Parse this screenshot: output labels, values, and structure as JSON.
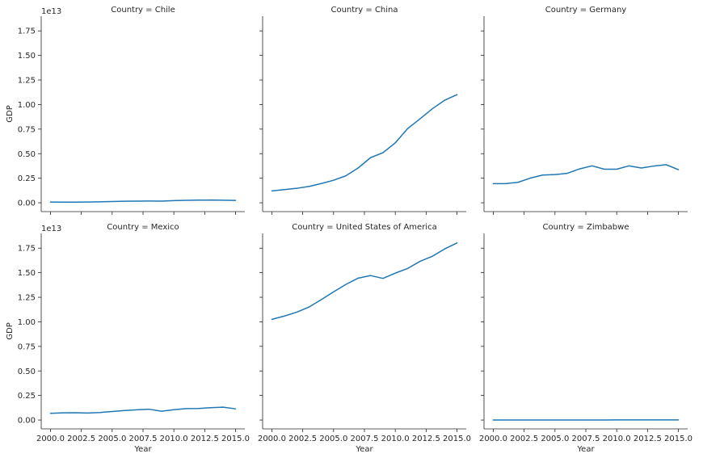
{
  "chart_data": {
    "type": "line",
    "layout": "facet-grid",
    "facet_var": "Country",
    "title_template": "Country = {}",
    "xlabel": "Year",
    "ylabel": "GDP",
    "offset_label": "1e13",
    "xlim": [
      1999.25,
      2015.75
    ],
    "ylim": [
      -0.09,
      1.9
    ],
    "x_ticks": [
      2000.0,
      2002.5,
      2005.0,
      2007.5,
      2010.0,
      2012.5,
      2015.0
    ],
    "x_tick_labels": [
      "2000.0",
      "2002.5",
      "2005.0",
      "2007.5",
      "2010.0",
      "2012.5",
      "2015.0"
    ],
    "y_ticks": [
      0.0,
      0.25,
      0.5,
      0.75,
      1.0,
      1.25,
      1.5,
      1.75
    ],
    "y_tick_labels": [
      "0.00",
      "0.25",
      "0.50",
      "0.75",
      "1.00",
      "1.25",
      "1.50",
      "1.75"
    ],
    "line_color": "#1f77b4",
    "x": [
      2000,
      2001,
      2002,
      2003,
      2004,
      2005,
      2006,
      2007,
      2008,
      2009,
      2010,
      2011,
      2012,
      2013,
      2014,
      2015
    ],
    "series": [
      {
        "name": "Chile",
        "values": [
          0.0078,
          0.0069,
          0.0068,
          0.0076,
          0.0099,
          0.0123,
          0.0155,
          0.0173,
          0.0179,
          0.0172,
          0.0218,
          0.0252,
          0.0267,
          0.0278,
          0.026,
          0.0243
        ]
      },
      {
        "name": "China",
        "values": [
          0.121,
          0.134,
          0.147,
          0.166,
          0.196,
          0.229,
          0.275,
          0.355,
          0.46,
          0.51,
          0.61,
          0.755,
          0.854,
          0.957,
          1.044,
          1.101
        ]
      },
      {
        "name": "Germany",
        "values": [
          0.195,
          0.195,
          0.208,
          0.251,
          0.282,
          0.287,
          0.3,
          0.345,
          0.376,
          0.342,
          0.342,
          0.376,
          0.354,
          0.374,
          0.388,
          0.337
        ]
      },
      {
        "name": "Mexico",
        "values": [
          0.068,
          0.073,
          0.074,
          0.071,
          0.077,
          0.087,
          0.097,
          0.104,
          0.11,
          0.09,
          0.105,
          0.117,
          0.118,
          0.126,
          0.131,
          0.114
        ]
      },
      {
        "name": "United States of America",
        "values": [
          1.025,
          1.058,
          1.098,
          1.15,
          1.226,
          1.305,
          1.381,
          1.445,
          1.471,
          1.442,
          1.496,
          1.543,
          1.616,
          1.667,
          1.742,
          1.803
        ]
      },
      {
        "name": "Zimbabwe",
        "values": [
          0.00067,
          0.00068,
          0.00063,
          0.00057,
          0.00056,
          0.00057,
          0.00054,
          0.00052,
          0.00044,
          0.00082,
          0.001,
          0.00122,
          0.00142,
          0.00155,
          0.00159,
          0.00163
        ]
      }
    ]
  }
}
